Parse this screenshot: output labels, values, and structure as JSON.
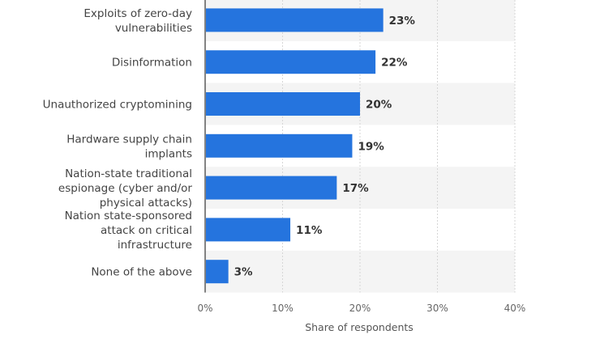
{
  "chart_data": {
    "type": "bar",
    "orientation": "horizontal",
    "categories": [
      [
        "Exploits of zero-day",
        "vulnerabilities"
      ],
      [
        "Disinformation"
      ],
      [
        "Unauthorized cryptomining"
      ],
      [
        "Hardware supply chain",
        "implants"
      ],
      [
        "Nation-state traditional",
        "espionage (cyber and/or",
        "physical attacks)"
      ],
      [
        "Nation state-sponsored",
        "attack on critical",
        "infrastructure"
      ],
      [
        "None of the above"
      ]
    ],
    "values": [
      23,
      22,
      20,
      19,
      17,
      11,
      3
    ],
    "value_labels": [
      "23%",
      "22%",
      "20%",
      "19%",
      "17%",
      "11%",
      "3%"
    ],
    "xlim": [
      0,
      40
    ],
    "xticks": [
      0,
      10,
      20,
      30,
      40
    ],
    "xtick_labels": [
      "0%",
      "10%",
      "20%",
      "30%",
      "40%"
    ],
    "xlabel": "Share of respondents",
    "ylabel": "",
    "title": "",
    "grid": true,
    "bar_color": "#2574de",
    "band_color": "#f4f4f4"
  }
}
